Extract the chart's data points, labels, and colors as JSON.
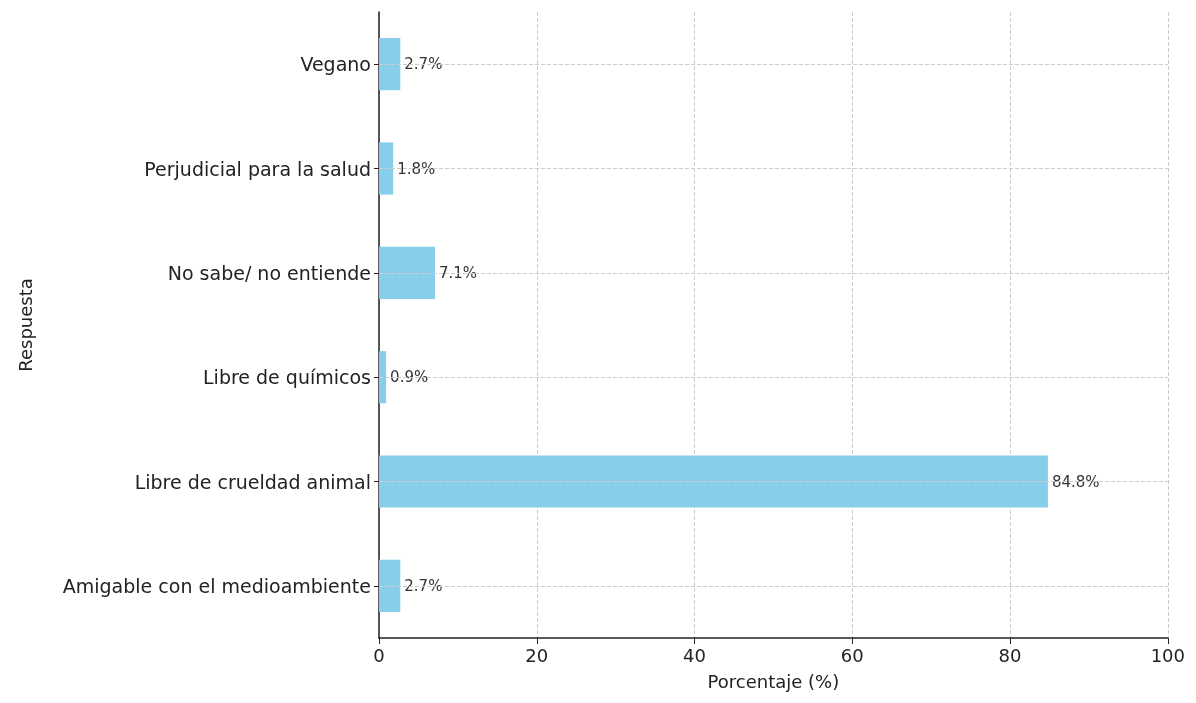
{
  "chart_data": {
    "type": "bar",
    "orientation": "horizontal",
    "xlabel": "Porcentaje (%)",
    "ylabel": "Respuesta",
    "categories": [
      "Vegano",
      "Perjudicial para la salud",
      "No sabe/ no entiende",
      "Libre de químicos",
      "Libre de crueldad animal",
      "Amigable con el medioambiente"
    ],
    "values": [
      2.7,
      1.8,
      7.1,
      0.9,
      84.8,
      2.7
    ],
    "value_labels": [
      "2.7%",
      "1.8%",
      "7.1%",
      "0.9%",
      "84.8%",
      "2.7%"
    ],
    "color": "#87ceeb",
    "xlim": [
      0,
      100
    ],
    "xticks": [
      0,
      20,
      40,
      60,
      80,
      100
    ],
    "grid": true
  }
}
